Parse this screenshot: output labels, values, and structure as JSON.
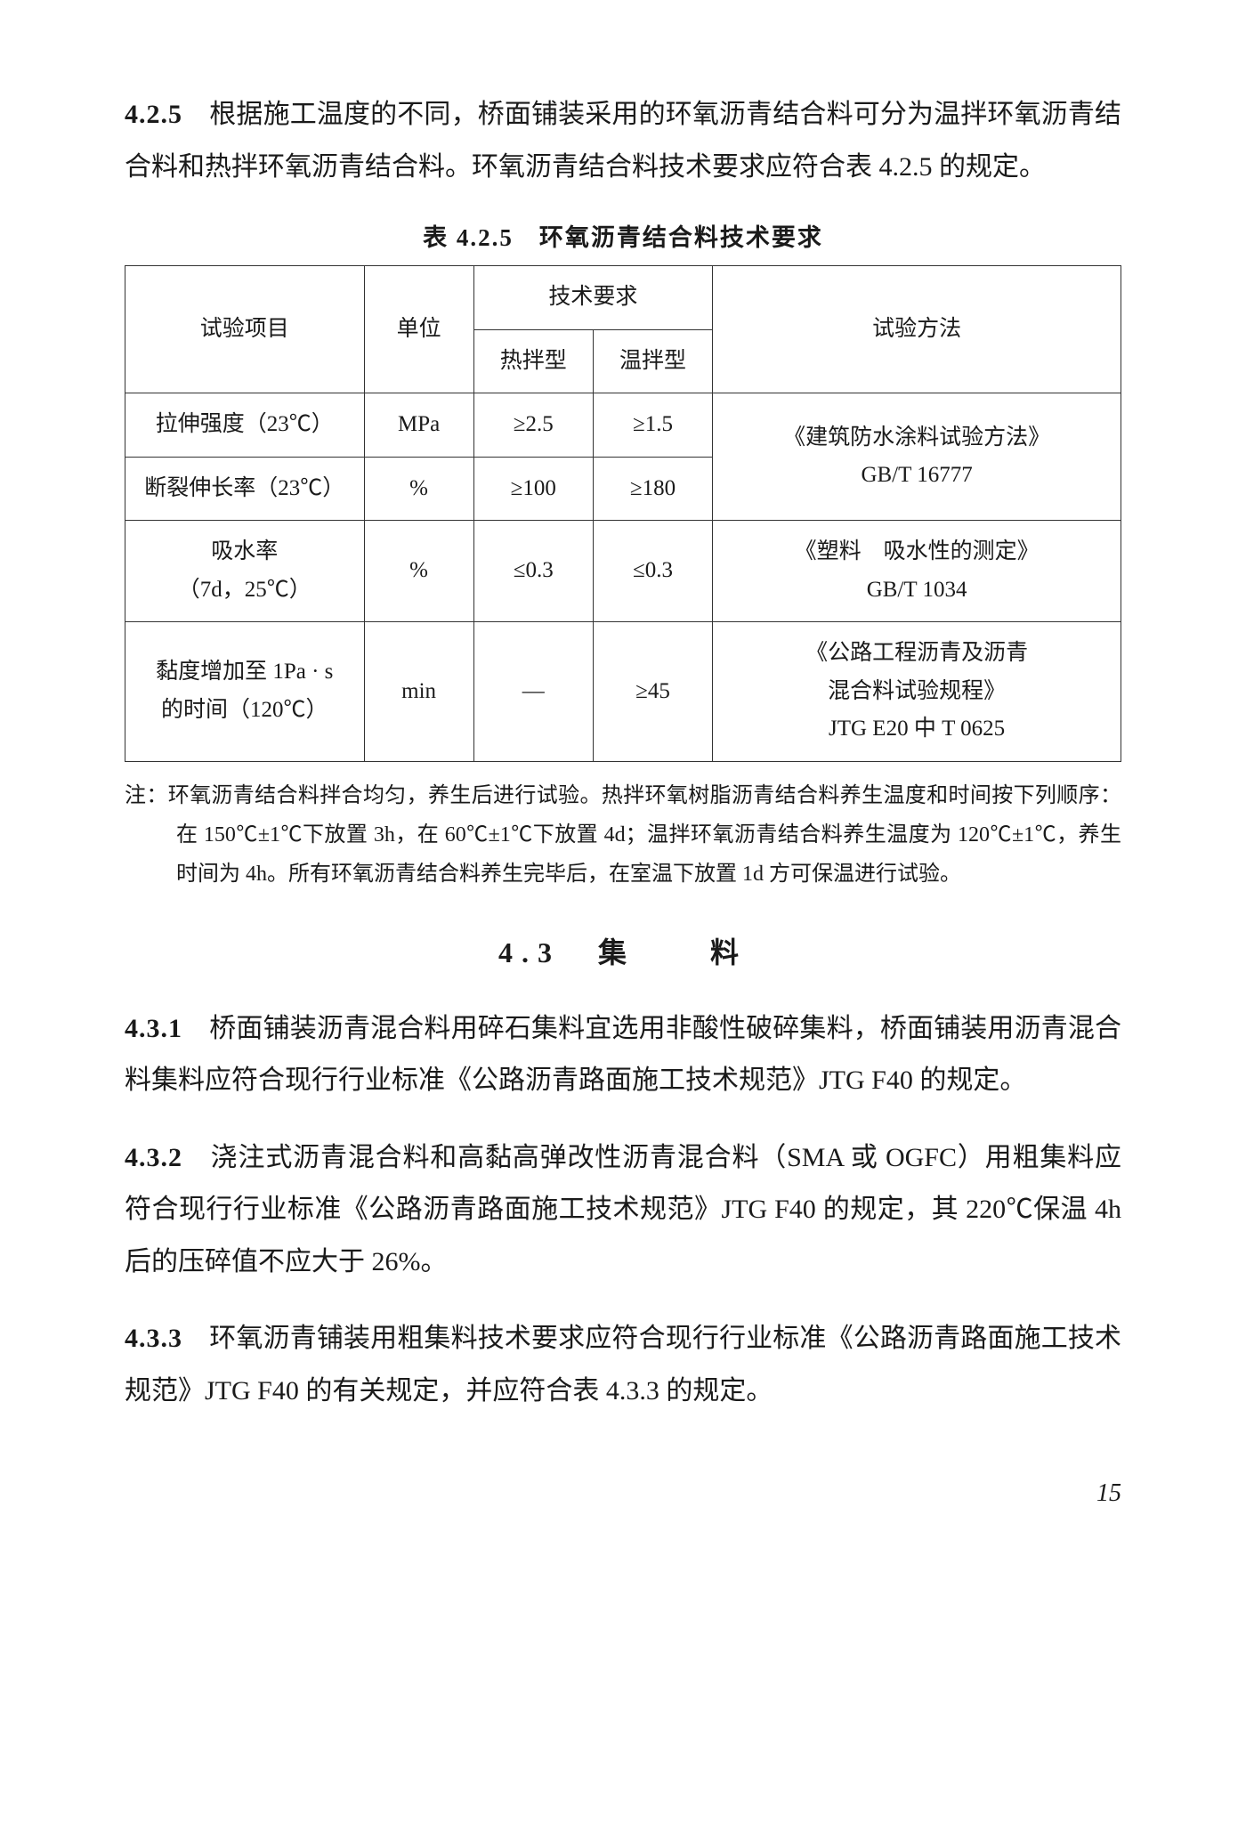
{
  "para_425": {
    "num": "4.2.5",
    "text": "　根据施工温度的不同，桥面铺装采用的环氧沥青结合料可分为温拌环氧沥青结合料和热拌环氧沥青结合料。环氧沥青结合料技术要求应符合表 4.2.5 的规定。"
  },
  "table_425": {
    "caption": "表 4.2.5　环氧沥青结合料技术要求",
    "headers": {
      "item": "试验项目",
      "unit": "单位",
      "req": "技术要求",
      "hot": "热拌型",
      "warm": "温拌型",
      "method": "试验方法"
    },
    "rows": [
      {
        "item": "拉伸强度（23℃）",
        "unit": "MPa",
        "hot": "≥2.5",
        "warm": "≥1.5",
        "method_l1": "《建筑防水涂料试验方法》",
        "method_l2": "GB/T 16777",
        "method_rowspan": 2
      },
      {
        "item": "断裂伸长率（23℃）",
        "unit": "%",
        "hot": "≥100",
        "warm": "≥180"
      },
      {
        "item_l1": "吸水率",
        "item_l2": "（7d，25℃）",
        "unit": "%",
        "hot": "≤0.3",
        "warm": "≤0.3",
        "method_l1": "《塑料　吸水性的测定》",
        "method_l2": "GB/T 1034"
      },
      {
        "item_l1": "黏度增加至 1Pa · s",
        "item_l2": "的时间（120℃）",
        "unit": "min",
        "hot": "—",
        "warm": "≥45",
        "method_l1": "《公路工程沥青及沥青",
        "method_l2": "混合料试验规程》",
        "method_l3": "JTG E20 中 T 0625"
      }
    ],
    "note": "注：环氧沥青结合料拌合均匀，养生后进行试验。热拌环氧树脂沥青结合料养生温度和时间按下列顺序：在 150℃±1℃下放置 3h，在 60℃±1℃下放置 4d；温拌环氧沥青结合料养生温度为 120℃±1℃，养生时间为 4h。所有环氧沥青结合料养生完毕后，在室温下放置 1d 方可保温进行试验。"
  },
  "section_43": {
    "title": "4.3　集　　料"
  },
  "para_431": {
    "num": "4.3.1",
    "text": "　桥面铺装沥青混合料用碎石集料宜选用非酸性破碎集料，桥面铺装用沥青混合料集料应符合现行行业标准《公路沥青路面施工技术规范》JTG F40 的规定。"
  },
  "para_432": {
    "num": "4.3.2",
    "text": "　浇注式沥青混合料和高黏高弹改性沥青混合料（SMA 或 OGFC）用粗集料应符合现行行业标准《公路沥青路面施工技术规范》JTG F40 的规定，其 220℃保温 4h 后的压碎值不应大于 26%。"
  },
  "para_433": {
    "num": "4.3.3",
    "text": "　环氧沥青铺装用粗集料技术要求应符合现行行业标准《公路沥青路面施工技术规范》JTG F40 的有关规定，并应符合表 4.3.3 的规定。"
  },
  "page_number": "15"
}
